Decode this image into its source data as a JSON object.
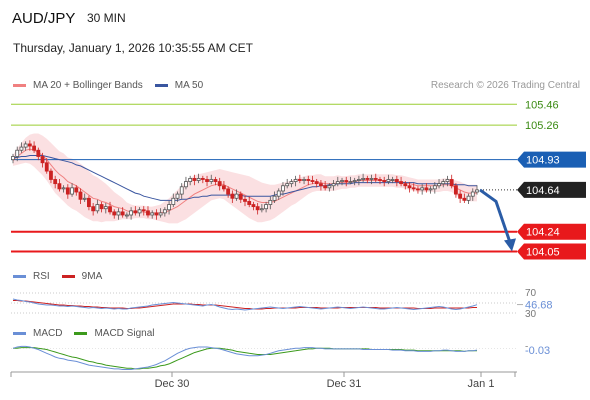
{
  "header": {
    "symbol": "AUD/JPY",
    "timeframe": "30 MIN",
    "datetime": "Thursday, January 1, 2026 10:35:55 AM CET",
    "attribution": "Research © 2026 Trading Central"
  },
  "colors": {
    "bollinger": "#f08080",
    "bollinger_fill": "#fadadd",
    "ma50": "#3a56a0",
    "candle_up": "#555555",
    "candle_down": "#cc2222",
    "resistance": "#9acd32",
    "pivot": "#1a5fb4",
    "support": "#e8191c",
    "current": "#222222",
    "rsi": "#6a8fd6",
    "rsi_ma": "#cc2222",
    "macd": "#6a8fd6",
    "macd_signal": "#3c9a1c",
    "forecast_arrow": "#2a5ca6"
  },
  "chart_data": [
    {
      "type": "candlestick",
      "name": "price",
      "legend": [
        {
          "label": "MA 20 + Bollinger Bands",
          "color": "#f08080"
        },
        {
          "label": "MA 50",
          "color": "#3a56a0"
        }
      ],
      "x_ticks": [
        "Dec 30",
        "Dec 31",
        "Jan 1"
      ],
      "ylim": [
        103.95,
        105.52
      ],
      "levels": [
        {
          "value": 105.46,
          "label": "105.46",
          "kind": "resistance"
        },
        {
          "value": 105.26,
          "label": "105.26",
          "kind": "resistance"
        },
        {
          "value": 104.93,
          "label": "104.93",
          "kind": "pivot"
        },
        {
          "value": 104.64,
          "label": "104.64",
          "kind": "current"
        },
        {
          "value": 104.24,
          "label": "104.24",
          "kind": "support"
        },
        {
          "value": 104.05,
          "label": "104.05",
          "kind": "support"
        }
      ],
      "close": [
        104.96,
        105.02,
        105.05,
        105.08,
        105.06,
        105.02,
        104.96,
        104.9,
        104.82,
        104.74,
        104.7,
        104.65,
        104.66,
        104.6,
        104.66,
        104.62,
        104.55,
        104.56,
        104.48,
        104.44,
        104.5,
        104.46,
        104.48,
        104.43,
        104.4,
        104.43,
        104.4,
        104.4,
        104.44,
        104.42,
        104.45,
        104.44,
        104.4,
        104.42,
        104.4,
        104.42,
        104.45,
        104.5,
        104.56,
        104.6,
        104.67,
        104.72,
        104.75,
        104.73,
        104.75,
        104.74,
        104.72,
        104.74,
        104.72,
        104.68,
        104.65,
        104.6,
        104.56,
        104.6,
        104.55,
        104.53,
        104.5,
        104.48,
        104.45,
        104.46,
        104.5,
        104.54,
        104.58,
        104.63,
        104.68,
        104.7,
        104.72,
        104.74,
        104.73,
        104.74,
        104.73,
        104.72,
        104.7,
        104.68,
        104.66,
        104.68,
        104.7,
        104.72,
        104.73,
        104.72,
        104.72,
        104.73,
        104.74,
        104.75,
        104.74,
        104.75,
        104.74,
        104.73,
        104.72,
        104.74,
        104.74,
        104.72,
        104.7,
        104.68,
        104.66,
        104.65,
        104.64,
        104.66,
        104.64,
        104.65,
        104.68,
        104.7,
        104.72,
        104.74,
        104.68,
        104.6,
        104.56,
        104.54,
        104.58,
        104.62,
        104.64
      ],
      "ma20": [
        104.92,
        104.96,
        104.99,
        105.02,
        105.03,
        105.02,
        105.0,
        104.97,
        104.93,
        104.88,
        104.83,
        104.79,
        104.76,
        104.72,
        104.7,
        104.68,
        104.65,
        104.62,
        104.59,
        104.56,
        104.55,
        104.53,
        104.52,
        104.5,
        104.48,
        104.47,
        104.46,
        104.44,
        104.43,
        104.43,
        104.43,
        104.43,
        104.42,
        104.42,
        104.42,
        104.42,
        104.43,
        104.44,
        104.46,
        104.48,
        104.51,
        104.54,
        104.57,
        104.6,
        104.62,
        104.64,
        104.66,
        104.68,
        104.69,
        104.7,
        104.69,
        104.67,
        104.65,
        104.63,
        104.61,
        104.59,
        104.57,
        104.55,
        104.53,
        104.52,
        104.52,
        104.52,
        104.53,
        104.55,
        104.57,
        104.59,
        104.61,
        104.63,
        104.65,
        104.67,
        104.69,
        104.7,
        104.71,
        104.71,
        104.7,
        104.7,
        104.7,
        104.71,
        104.71,
        104.71,
        104.72,
        104.72,
        104.73,
        104.73,
        104.73,
        104.73,
        104.73,
        104.73,
        104.73,
        104.73,
        104.73,
        104.72,
        104.72,
        104.71,
        104.7,
        104.69,
        104.68,
        104.68,
        104.68,
        104.68,
        104.68,
        104.68,
        104.69,
        104.69,
        104.68,
        104.66,
        104.64,
        104.62,
        104.61,
        104.61,
        104.61
      ],
      "boll_half": [
        0.05,
        0.08,
        0.1,
        0.12,
        0.14,
        0.16,
        0.18,
        0.19,
        0.2,
        0.21,
        0.22,
        0.22,
        0.23,
        0.23,
        0.24,
        0.24,
        0.24,
        0.24,
        0.23,
        0.22,
        0.21,
        0.2,
        0.18,
        0.16,
        0.14,
        0.12,
        0.1,
        0.08,
        0.07,
        0.06,
        0.06,
        0.06,
        0.06,
        0.06,
        0.07,
        0.08,
        0.1,
        0.12,
        0.14,
        0.16,
        0.17,
        0.18,
        0.18,
        0.18,
        0.17,
        0.16,
        0.15,
        0.14,
        0.14,
        0.14,
        0.14,
        0.15,
        0.16,
        0.17,
        0.18,
        0.19,
        0.2,
        0.2,
        0.2,
        0.19,
        0.18,
        0.17,
        0.16,
        0.15,
        0.14,
        0.13,
        0.12,
        0.12,
        0.11,
        0.1,
        0.09,
        0.08,
        0.08,
        0.08,
        0.07,
        0.07,
        0.07,
        0.07,
        0.06,
        0.06,
        0.06,
        0.06,
        0.06,
        0.06,
        0.06,
        0.06,
        0.06,
        0.06,
        0.06,
        0.06,
        0.06,
        0.06,
        0.06,
        0.06,
        0.06,
        0.06,
        0.06,
        0.06,
        0.06,
        0.06,
        0.06,
        0.06,
        0.06,
        0.06,
        0.06,
        0.07,
        0.08,
        0.08,
        0.08,
        0.08,
        0.08
      ],
      "ma50": [
        104.95,
        104.95,
        104.96,
        104.96,
        104.97,
        104.97,
        104.97,
        104.97,
        104.96,
        104.95,
        104.94,
        104.93,
        104.92,
        104.91,
        104.9,
        104.88,
        104.87,
        104.85,
        104.83,
        104.81,
        104.79,
        104.77,
        104.75,
        104.73,
        104.71,
        104.69,
        104.67,
        104.65,
        104.63,
        104.61,
        104.6,
        104.58,
        104.57,
        104.56,
        104.55,
        104.54,
        104.54,
        104.54,
        104.54,
        104.54,
        104.55,
        104.55,
        104.56,
        104.57,
        104.57,
        104.58,
        104.58,
        104.59,
        104.59,
        104.59,
        104.59,
        104.59,
        104.59,
        104.59,
        104.59,
        104.58,
        104.58,
        104.58,
        104.58,
        104.58,
        104.58,
        104.58,
        104.59,
        104.6,
        104.6,
        104.61,
        104.62,
        104.63,
        104.64,
        104.65,
        104.66,
        104.67,
        104.67,
        104.68,
        104.68,
        104.69,
        104.69,
        104.7,
        104.7,
        104.7,
        104.7,
        104.71,
        104.71,
        104.71,
        104.71,
        104.71,
        104.71,
        104.71,
        104.71,
        104.71,
        104.71,
        104.71,
        104.71,
        104.71,
        104.71,
        104.71,
        104.7,
        104.7,
        104.7,
        104.7,
        104.7,
        104.7,
        104.7,
        104.7,
        104.7,
        104.69,
        104.69,
        104.69,
        104.68,
        104.68,
        104.68
      ],
      "forecast": [
        104.64,
        104.53,
        104.08
      ]
    },
    {
      "type": "line",
      "name": "rsi",
      "legend": [
        {
          "label": "RSI",
          "color": "#6a8fd6"
        },
        {
          "label": "9MA",
          "color": "#cc2222"
        }
      ],
      "ylim": [
        20,
        80
      ],
      "ticks": [
        "70",
        "30"
      ],
      "last_value": "46.68",
      "rsi": [
        58,
        56,
        55,
        53,
        52,
        50,
        48,
        47,
        46,
        46,
        45,
        44,
        44,
        43,
        44,
        43,
        42,
        41,
        40,
        41,
        40,
        39,
        40,
        39,
        38,
        39,
        38,
        38,
        40,
        41,
        42,
        43,
        44,
        46,
        47,
        48,
        49,
        50,
        51,
        50,
        49,
        48,
        47,
        46,
        45,
        44,
        46,
        47,
        45,
        42,
        40,
        38,
        37,
        38,
        37,
        36,
        37,
        38,
        39,
        40,
        41,
        42,
        41,
        40,
        39,
        40,
        41,
        42,
        43,
        42,
        41,
        40,
        39,
        38,
        39,
        40,
        41,
        42,
        41,
        40,
        39,
        40,
        41,
        42,
        41,
        40,
        39,
        38,
        38,
        39,
        40,
        41,
        40,
        39,
        38,
        37,
        38,
        39,
        40,
        41,
        42,
        43,
        42,
        40,
        38,
        37,
        38,
        40,
        42,
        44,
        46.68
      ],
      "rsi_ma": [
        55,
        55,
        54,
        54,
        53,
        52,
        51,
        50,
        49,
        48,
        47,
        46,
        46,
        45,
        45,
        44,
        44,
        43,
        43,
        42,
        42,
        41,
        41,
        40,
        40,
        40,
        40,
        39,
        39,
        40,
        40,
        41,
        42,
        43,
        44,
        45,
        46,
        47,
        48,
        48,
        48,
        48,
        48,
        47,
        47,
        46,
        46,
        46,
        46,
        45,
        44,
        43,
        42,
        41,
        40,
        39,
        39,
        38,
        38,
        38,
        39,
        39,
        40,
        40,
        40,
        40,
        40,
        40,
        41,
        41,
        41,
        41,
        41,
        40,
        40,
        40,
        40,
        40,
        41,
        41,
        41,
        41,
        41,
        41,
        41,
        41,
        41,
        40,
        40,
        40,
        40,
        40,
        40,
        40,
        40,
        40,
        39,
        39,
        39,
        39,
        40,
        40,
        40,
        40,
        40,
        40,
        40,
        40,
        40,
        41,
        41
      ]
    },
    {
      "type": "line",
      "name": "macd",
      "legend": [
        {
          "label": "MACD",
          "color": "#6a8fd6"
        },
        {
          "label": "MACD Signal",
          "color": "#3c9a1c"
        }
      ],
      "ylim": [
        -0.38,
        0.1
      ],
      "last_value": "-0.03",
      "zero_tick": "-",
      "macd": [
        0.0,
        0.02,
        0.03,
        0.03,
        0.02,
        0.0,
        -0.02,
        -0.05,
        -0.08,
        -0.11,
        -0.14,
        -0.16,
        -0.17,
        -0.19,
        -0.2,
        -0.21,
        -0.23,
        -0.25,
        -0.27,
        -0.28,
        -0.29,
        -0.3,
        -0.31,
        -0.32,
        -0.33,
        -0.33,
        -0.34,
        -0.34,
        -0.34,
        -0.33,
        -0.32,
        -0.31,
        -0.3,
        -0.28,
        -0.26,
        -0.23,
        -0.2,
        -0.16,
        -0.12,
        -0.08,
        -0.05,
        -0.02,
        0.0,
        0.01,
        0.02,
        0.02,
        0.02,
        0.01,
        0.0,
        -0.01,
        -0.03,
        -0.05,
        -0.07,
        -0.09,
        -0.1,
        -0.11,
        -0.12,
        -0.12,
        -0.12,
        -0.11,
        -0.1,
        -0.08,
        -0.06,
        -0.04,
        -0.03,
        -0.02,
        -0.01,
        0.0,
        0.0,
        0.01,
        0.01,
        0.01,
        0.0,
        0.0,
        -0.01,
        -0.01,
        -0.01,
        -0.01,
        -0.01,
        -0.01,
        -0.01,
        -0.01,
        -0.01,
        -0.02,
        -0.02,
        -0.02,
        -0.02,
        -0.02,
        -0.02,
        -0.02,
        -0.03,
        -0.03,
        -0.03,
        -0.04,
        -0.04,
        -0.04,
        -0.05,
        -0.05,
        -0.05,
        -0.05,
        -0.04,
        -0.04,
        -0.03,
        -0.03,
        -0.04,
        -0.05,
        -0.05,
        -0.05,
        -0.04,
        -0.04,
        -0.03
      ],
      "signal": [
        0.0,
        0.0,
        0.01,
        0.01,
        0.01,
        0.01,
        0.0,
        -0.01,
        -0.02,
        -0.04,
        -0.06,
        -0.08,
        -0.1,
        -0.12,
        -0.14,
        -0.15,
        -0.17,
        -0.19,
        -0.21,
        -0.22,
        -0.24,
        -0.25,
        -0.27,
        -0.28,
        -0.29,
        -0.3,
        -0.31,
        -0.32,
        -0.32,
        -0.33,
        -0.33,
        -0.32,
        -0.32,
        -0.31,
        -0.3,
        -0.28,
        -0.27,
        -0.25,
        -0.22,
        -0.19,
        -0.16,
        -0.13,
        -0.1,
        -0.07,
        -0.05,
        -0.03,
        -0.01,
        0.0,
        0.0,
        0.0,
        -0.01,
        -0.02,
        -0.03,
        -0.05,
        -0.06,
        -0.07,
        -0.08,
        -0.09,
        -0.1,
        -0.1,
        -0.1,
        -0.1,
        -0.09,
        -0.08,
        -0.07,
        -0.06,
        -0.05,
        -0.04,
        -0.03,
        -0.02,
        -0.01,
        -0.01,
        0.0,
        0.0,
        0.0,
        0.0,
        -0.01,
        -0.01,
        -0.01,
        -0.01,
        -0.01,
        -0.01,
        -0.01,
        -0.01,
        -0.01,
        -0.02,
        -0.02,
        -0.02,
        -0.02,
        -0.02,
        -0.02,
        -0.02,
        -0.02,
        -0.03,
        -0.03,
        -0.03,
        -0.04,
        -0.04,
        -0.04,
        -0.04,
        -0.04,
        -0.04,
        -0.04,
        -0.04,
        -0.04,
        -0.04,
        -0.04,
        -0.05,
        -0.04,
        -0.04,
        -0.04
      ]
    }
  ]
}
